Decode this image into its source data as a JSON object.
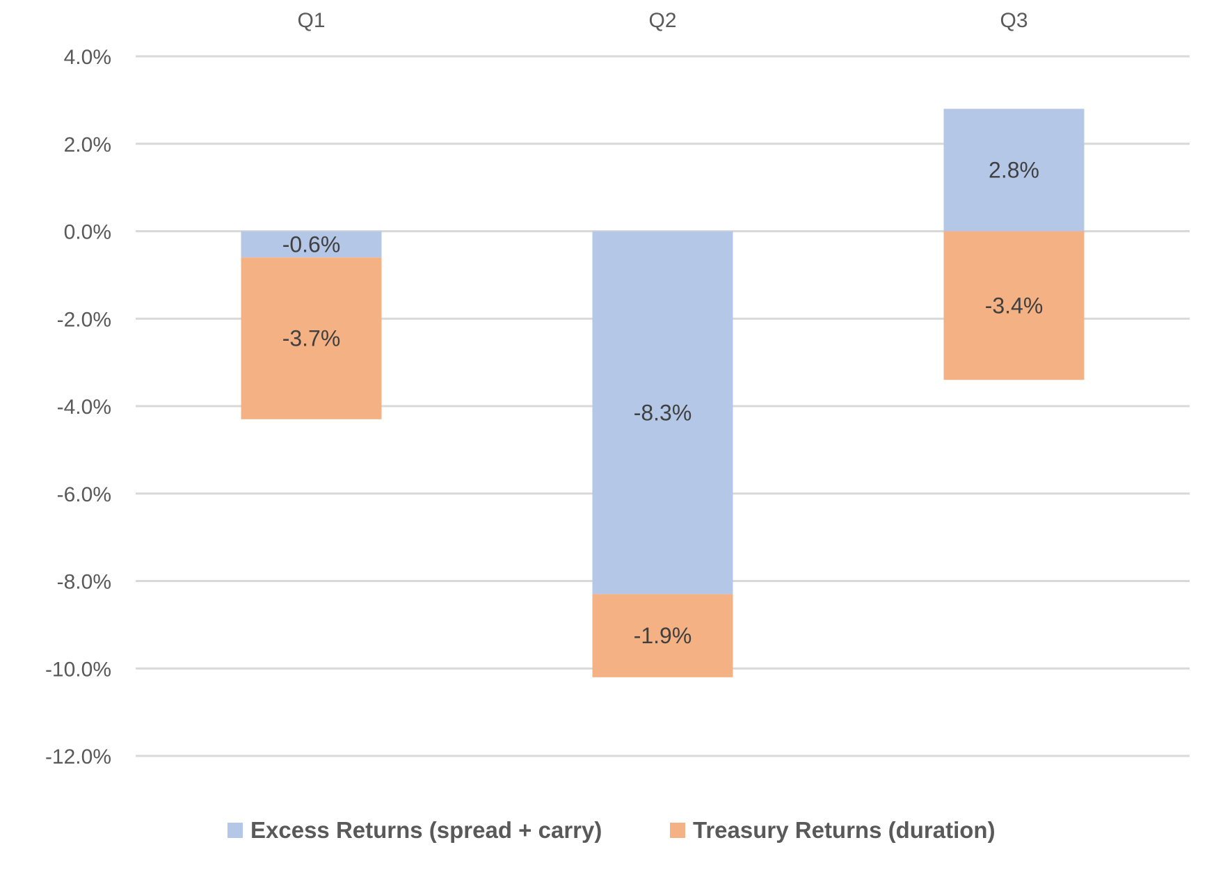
{
  "chart_data": {
    "type": "bar",
    "stacked": true,
    "categories": [
      "Q1",
      "Q2",
      "Q3"
    ],
    "category_axis_position": "top",
    "series": [
      {
        "name": "Excess Returns (spread + carry)",
        "color": "#b4c7e7",
        "values": [
          -0.6,
          -8.3,
          2.8
        ],
        "labels": [
          "-0.6%",
          "-8.3%",
          "2.8%"
        ]
      },
      {
        "name": "Treasury Returns (duration)",
        "color": "#f4b183",
        "values": [
          -3.7,
          -1.9,
          -3.4
        ],
        "labels": [
          "-3.7%",
          "-1.9%",
          "-3.4%"
        ]
      }
    ],
    "ylim": [
      -12,
      4
    ],
    "yticks": [
      4,
      2,
      0,
      -2,
      -4,
      -6,
      -8,
      -10,
      -12
    ],
    "ytick_labels": [
      "4.0%",
      "2.0%",
      "0.0%",
      "-2.0%",
      "-4.0%",
      "-6.0%",
      "-8.0%",
      "-10.0%",
      "-12.0%"
    ],
    "grid": true,
    "legend_position": "bottom",
    "title": "",
    "xlabel": "",
    "ylabel": ""
  }
}
